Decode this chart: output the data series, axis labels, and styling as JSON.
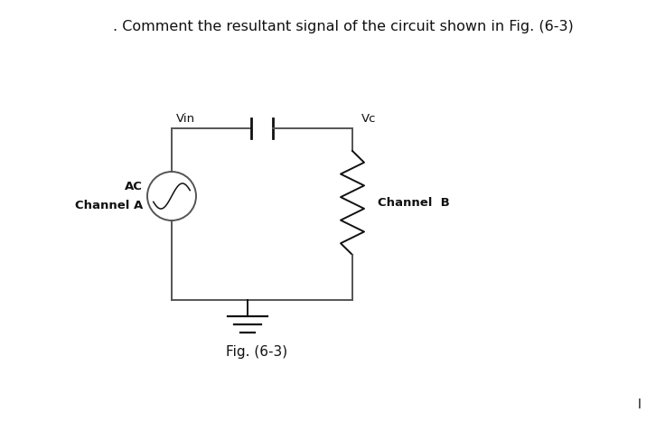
{
  "title": ". Comment the resultant signal of the circuit shown in Fig. (6-3)",
  "fig_caption": "Fig. (6-3)",
  "label_vin": "Vin",
  "label_vc": "Vc",
  "label_ac": "AC",
  "label_channel_a": "Channel A",
  "label_channel_b": "Channel  B",
  "bg_color": "#ffffff",
  "line_color": "#555555",
  "text_color": "#111111",
  "title_fontsize": 11.5,
  "label_fontsize": 9.5,
  "caption_fontsize": 11
}
